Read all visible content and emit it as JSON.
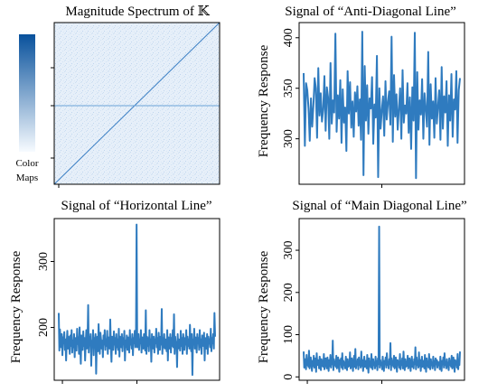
{
  "colorbar": {
    "label_line1": "Color",
    "label_line2": "Maps",
    "color_low": "#f7fbff",
    "color_high": "#08519c"
  },
  "colors": {
    "line": "#2f7bbf",
    "heatmap_bg": "#e4eef9",
    "heatmap_line": "#3b7fc4"
  },
  "chart_data": [
    {
      "id": "magnitude",
      "type": "heatmap",
      "title": "Magnitude Spectrum of 𝕂",
      "pattern": [
        "main diagonal line",
        "horizontal line"
      ]
    },
    {
      "id": "anti",
      "type": "line",
      "title": "Signal of “Anti-Diagonal Line”",
      "xlabel": "",
      "ylabel": "Frequency Response",
      "ylim": [
        255,
        415
      ],
      "yticks": [
        300,
        350,
        400
      ],
      "xlim": [
        0,
        128
      ],
      "xticks": [
        64
      ],
      "xticklabels": [
        ""
      ],
      "y": [
        365,
        293,
        355,
        348,
        330,
        298,
        340,
        312,
        333,
        360,
        350,
        301,
        370,
        323,
        345,
        317,
        329,
        362,
        308,
        351,
        341,
        300,
        375,
        315,
        338,
        326,
        404,
        307,
        343,
        320,
        358,
        296,
        349,
        316,
        331,
        288,
        367,
        325,
        356,
        311,
        337,
        302,
        346,
        327,
        352,
        313,
        339,
        299,
        406,
        264,
        372,
        318,
        353,
        305,
        340,
        330,
        361,
        295,
        334,
        321,
        382,
        262,
        350,
        310,
        328,
        342,
        303,
        357,
        319,
        336,
        347,
        314,
        401,
        297,
        363,
        322,
        344,
        309,
        330,
        350,
        300,
        368,
        316,
        333,
        325,
        355,
        306,
        341,
        290,
        351,
        318,
        405,
        261,
        366,
        309,
        338,
        324,
        359,
        300,
        345,
        329,
        312,
        386,
        294,
        354,
        320,
        337,
        301,
        360,
        315,
        332,
        348,
        299,
        371,
        310,
        342,
        326,
        357,
        293,
        343,
        318,
        364,
        302,
        339,
        329,
        367,
        296,
        348,
        360
      ]
    },
    {
      "id": "horizontal",
      "type": "line",
      "title": "Signal of “Horizontal Line”",
      "xlabel": "",
      "ylabel": "Frequency Response",
      "ylim": [
        120,
        365
      ],
      "yticks": [
        200,
        300
      ],
      "xlim": [
        0,
        256
      ],
      "xticks": [
        6,
        128
      ],
      "xticklabels": [
        "",
        ""
      ],
      "y": [
        222,
        165,
        197,
        180,
        170,
        190,
        158,
        185,
        176,
        193,
        166,
        182,
        150,
        178,
        195,
        168,
        186,
        174,
        160,
        188,
        172,
        196,
        162,
        180,
        170,
        190,
        155,
        184,
        176,
        165,
        198,
        175,
        185,
        160,
        200,
        173,
        145,
        188,
        178,
        166,
        194,
        172,
        184,
        150,
        176,
        196,
        168,
        182,
        234,
        162,
        186,
        174,
        190,
        142,
        180,
        170,
        196,
        158,
        184,
        176,
        190,
        130,
        172,
        186,
        164,
        205,
        178,
        160,
        192,
        182,
        168,
        180,
        155,
        188,
        174,
        196,
        166,
        182,
        172,
        195,
        160,
        185,
        176,
        168,
        212,
        172,
        148,
        186,
        178,
        166,
        194,
        174,
        184,
        160,
        190,
        170,
        182,
        166,
        198,
        156,
        186,
        176,
        170,
        190,
        164,
        184,
        175,
        195,
        150,
        180,
        170,
        188,
        166,
        185,
        176,
        162,
        196,
        174,
        182,
        168,
        190,
        158,
        184,
        176,
        195,
        170,
        182,
        356,
        170,
        178,
        190,
        166,
        182,
        176,
        196,
        162,
        185,
        174,
        168,
        190,
        178,
        165,
        226,
        160,
        186,
        172,
        184,
        164,
        196,
        176,
        182,
        148,
        190,
        175,
        168,
        186,
        162,
        182,
        176,
        198,
        170,
        184,
        160,
        192,
        176,
        166,
        186,
        174,
        228,
        160,
        184,
        170,
        190,
        168,
        182,
        176,
        164,
        196,
        150,
        185,
        176,
        168,
        190,
        162,
        184,
        172,
        196,
        170,
        220,
        160,
        186,
        175,
        178,
        140,
        190,
        168,
        182,
        176,
        165,
        195,
        172,
        184,
        160,
        190,
        178,
        166,
        184,
        174,
        196,
        160,
        186,
        172,
        182,
        168,
        204,
        178,
        164,
        190,
        128,
        182,
        176,
        198,
        168,
        185,
        174,
        162,
        190,
        176,
        184,
        166,
        196,
        170,
        182,
        160,
        188,
        176,
        172,
        192,
        150,
        184,
        174,
        168,
        190,
        160,
        186,
        176,
        182,
        170,
        198,
        164,
        184,
        176,
        190,
        168,
        222,
        186
      ]
    },
    {
      "id": "main",
      "type": "line",
      "title": "Signal of “Main Diagonal Line”",
      "xlabel": "",
      "ylabel": "Frequency Response",
      "ylim": [
        -8,
        375
      ],
      "yticks": [
        0,
        100,
        200,
        300
      ],
      "xlim": [
        0,
        256
      ],
      "xticks": [
        6,
        128
      ],
      "xticklabels": [
        "",
        ""
      ],
      "y": [
        60,
        22,
        42,
        30,
        18,
        52,
        28,
        40,
        24,
        62,
        20,
        36,
        46,
        30,
        14,
        38,
        26,
        50,
        22,
        44,
        32,
        12,
        56,
        28,
        40,
        34,
        20,
        48,
        30,
        16,
        42,
        26,
        38,
        24,
        54,
        18,
        36,
        44,
        28,
        20,
        46,
        32,
        14,
        40,
        26,
        52,
        22,
        38,
        30,
        86,
        16,
        42,
        28,
        36,
        24,
        50,
        20,
        34,
        46,
        26,
        12,
        40,
        30,
        44,
        22,
        56,
        18,
        38,
        28,
        34,
        20,
        48,
        30,
        16,
        42,
        24,
        36,
        26,
        58,
        20,
        32,
        44,
        28,
        14,
        38,
        50,
        24,
        66,
        20,
        34,
        30,
        42,
        18,
        46,
        28,
        36,
        22,
        60,
        26,
        40,
        14,
        32,
        48,
        24,
        38,
        30,
        20,
        52,
        28,
        10,
        44,
        26,
        36,
        22,
        54,
        30,
        18,
        42,
        28,
        34,
        20,
        48,
        26,
        38,
        16,
        44,
        30,
        356,
        22,
        40,
        28,
        34,
        18,
        48,
        26,
        14,
        38,
        30,
        46,
        22,
        56,
        28,
        36,
        20,
        42,
        30,
        80,
        16,
        44,
        28,
        38,
        24,
        50,
        20,
        32,
        46,
        26,
        12,
        40,
        30,
        36,
        22,
        54,
        18,
        38,
        28,
        44,
        20,
        60,
        30,
        16,
        42,
        24,
        36,
        26,
        50,
        20,
        32,
        44,
        28,
        14,
        38,
        48,
        24,
        34,
        20,
        42,
        30,
        70,
        18,
        46,
        28,
        36,
        22,
        58,
        26,
        40,
        14,
        32,
        48,
        24,
        38,
        30,
        20,
        52,
        28,
        12,
        44,
        26,
        36,
        22,
        54,
        30,
        18,
        42,
        28,
        34,
        20,
        48,
        26,
        38,
        16,
        44,
        30,
        40,
        22,
        36,
        28,
        34,
        18,
        48,
        26,
        14,
        38,
        30,
        46,
        22,
        56,
        28,
        36,
        20,
        42,
        30,
        26,
        16,
        44,
        28,
        38,
        24,
        50,
        20,
        32,
        46,
        26,
        12,
        40,
        30,
        36,
        22,
        54,
        18,
        38,
        28,
        60
      ]
    }
  ]
}
